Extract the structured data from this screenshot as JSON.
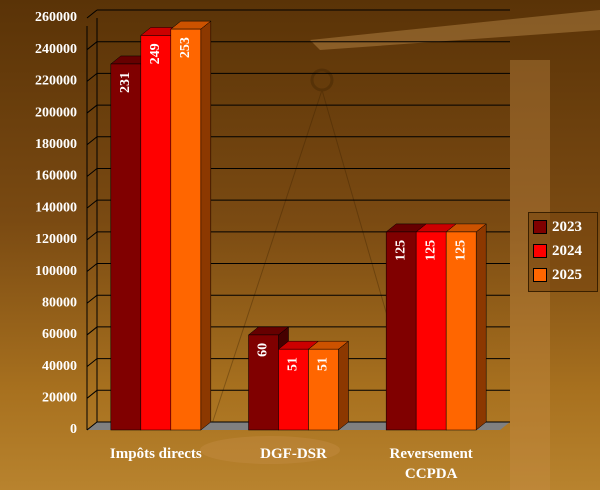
{
  "chart_data": {
    "type": "bar3d",
    "categories": [
      "Impôts directs",
      "DGF-DSR",
      "Reversement CCPDA"
    ],
    "series": [
      {
        "name": "2023",
        "color": "#800000",
        "values": [
          231000,
          60000,
          125000
        ],
        "value_labels": [
          "231",
          "60",
          "125"
        ]
      },
      {
        "name": "2024",
        "color": "#ff0000",
        "values": [
          249000,
          51000,
          125000
        ],
        "value_labels": [
          "249",
          "51",
          "125"
        ]
      },
      {
        "name": "2025",
        "color": "#ff6600",
        "values": [
          253000,
          51000,
          125000
        ],
        "value_labels": [
          "253",
          "51",
          "125"
        ]
      }
    ],
    "ylim": [
      0,
      260000
    ],
    "yticks": [
      0,
      20000,
      40000,
      60000,
      80000,
      100000,
      120000,
      140000,
      160000,
      180000,
      200000,
      220000,
      240000,
      260000
    ],
    "grid": true,
    "legend": "right"
  }
}
